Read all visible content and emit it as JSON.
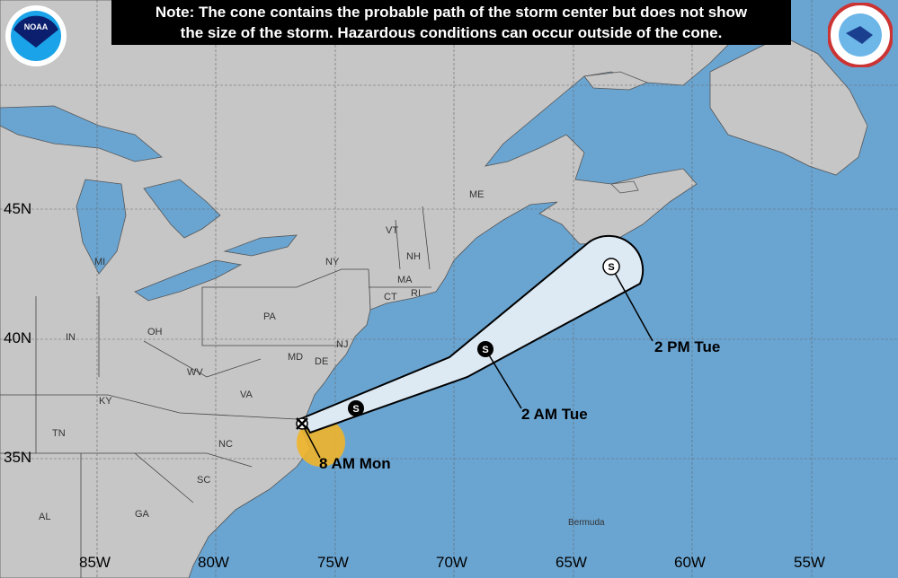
{
  "note": {
    "line1": "Note: The cone contains the probable path of the storm center but does not show",
    "line2": "the size of the storm. Hazardous conditions can occur outside of the cone."
  },
  "logos": {
    "left": "NOAA",
    "right": "NATIONAL WEATHER SERVICE"
  },
  "latitudes": [
    "45N",
    "40N",
    "35N"
  ],
  "longitudes": [
    "85W",
    "80W",
    "75W",
    "70W",
    "65W",
    "60W",
    "55W"
  ],
  "states": [
    "MI",
    "OH",
    "IN",
    "PA",
    "NY",
    "VT",
    "NH",
    "ME",
    "MA",
    "CT",
    "RI",
    "NJ",
    "MD",
    "DE",
    "WV",
    "VA",
    "KY",
    "TN",
    "NC",
    "SC",
    "GA",
    "AL"
  ],
  "places": {
    "bermuda": "Bermuda"
  },
  "forecast_points": [
    {
      "time": "8 AM Mon",
      "symbol": "X",
      "type": "current position"
    },
    {
      "time": "",
      "symbol": "S",
      "type": "filled"
    },
    {
      "time": "2 AM Tue",
      "symbol": "S",
      "type": "filled"
    },
    {
      "time": "2 PM Tue",
      "symbol": "S",
      "type": "open"
    }
  ],
  "colors": {
    "ocean": "#6aa5d2",
    "land": "#c6c6c6",
    "cone": "#dde9f3",
    "wind_area": "#f0b429"
  }
}
